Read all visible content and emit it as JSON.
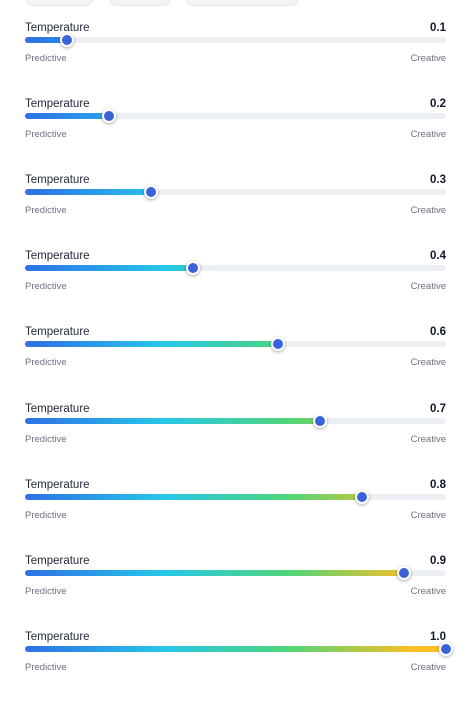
{
  "sliders": [
    {
      "label": "Temperature",
      "value": "0.1",
      "min_label": "Predictive",
      "max_label": "Creative",
      "level": 0.1
    },
    {
      "label": "Temperature",
      "value": "0.2",
      "min_label": "Predictive",
      "max_label": "Creative",
      "level": 0.2
    },
    {
      "label": "Temperature",
      "value": "0.3",
      "min_label": "Predictive",
      "max_label": "Creative",
      "level": 0.3
    },
    {
      "label": "Temperature",
      "value": "0.4",
      "min_label": "Predictive",
      "max_label": "Creative",
      "level": 0.4
    },
    {
      "label": "Temperature",
      "value": "0.6",
      "min_label": "Predictive",
      "max_label": "Creative",
      "level": 0.6
    },
    {
      "label": "Temperature",
      "value": "0.7",
      "min_label": "Predictive",
      "max_label": "Creative",
      "level": 0.7
    },
    {
      "label": "Temperature",
      "value": "0.8",
      "min_label": "Predictive",
      "max_label": "Creative",
      "level": 0.8
    },
    {
      "label": "Temperature",
      "value": "0.9",
      "min_label": "Predictive",
      "max_label": "Creative",
      "level": 0.9
    },
    {
      "label": "Temperature",
      "value": "1.0",
      "min_label": "Predictive",
      "max_label": "Creative",
      "level": 1.0
    }
  ],
  "colors": {
    "thumb": "#3b63d9",
    "track": "#eceff3",
    "gradient_start": "#2f6fe6",
    "gradient_cyan": "#27c7e8",
    "gradient_green": "#4ed57a",
    "gradient_end": "#fbbf24"
  }
}
